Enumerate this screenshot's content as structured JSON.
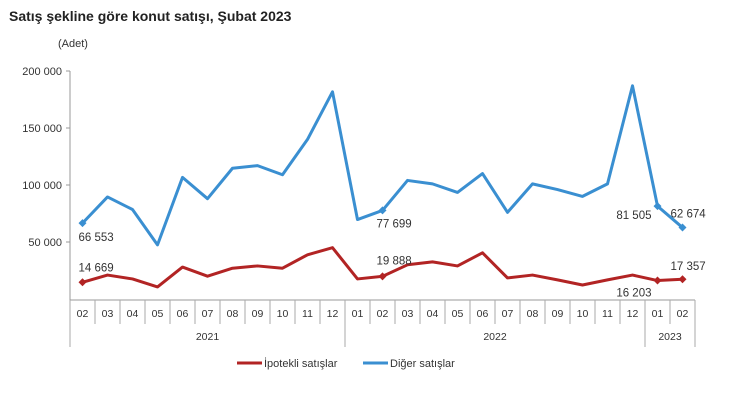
{
  "chart_data": {
    "type": "line",
    "title": "Satış şekline göre konut satışı, Şubat 2023",
    "ylabel": "(Adet)",
    "ylim": [
      0,
      200000
    ],
    "yticks": [
      "50 000",
      "100 000",
      "150 000",
      "200 000"
    ],
    "ytick_values": [
      50000,
      100000,
      150000,
      200000
    ],
    "grid": false,
    "legend": "bottom",
    "x": [
      "02",
      "03",
      "04",
      "05",
      "06",
      "07",
      "08",
      "09",
      "10",
      "11",
      "12",
      "01",
      "02",
      "03",
      "04",
      "05",
      "06",
      "07",
      "08",
      "09",
      "10",
      "11",
      "12",
      "01",
      "02"
    ],
    "years": [
      {
        "label": "2021",
        "count": 11
      },
      {
        "label": "2022",
        "count": 12
      },
      {
        "label": "2023",
        "count": 2
      }
    ],
    "series": [
      {
        "name": "İpotekli satışlar",
        "color": "#b22424",
        "values": [
          14669,
          21000,
          17600,
          10600,
          28000,
          20000,
          27000,
          29000,
          27000,
          38800,
          45000,
          17600,
          19888,
          30000,
          32600,
          29000,
          40500,
          18500,
          21000,
          16800,
          12300,
          16800,
          21000,
          16203,
          17357
        ],
        "labels": [
          {
            "index": 0,
            "text": "14 669"
          },
          {
            "index": 12,
            "text": "19 888"
          },
          {
            "index": 23,
            "text": "16 203"
          },
          {
            "index": 24,
            "text": "17 357"
          }
        ]
      },
      {
        "name": "Diğer satışlar",
        "color": "#3a8fd1",
        "values": [
          66553,
          89500,
          78500,
          47500,
          106700,
          88000,
          114700,
          117000,
          109000,
          140000,
          181700,
          69700,
          77699,
          104000,
          101000,
          93500,
          110000,
          76000,
          101000,
          96000,
          90000,
          101000,
          187000,
          81505,
          62674
        ],
        "labels": [
          {
            "index": 0,
            "text": "66 553"
          },
          {
            "index": 12,
            "text": "77 699"
          },
          {
            "index": 23,
            "text": "81 505"
          },
          {
            "index": 24,
            "text": "62 674"
          }
        ]
      }
    ]
  }
}
